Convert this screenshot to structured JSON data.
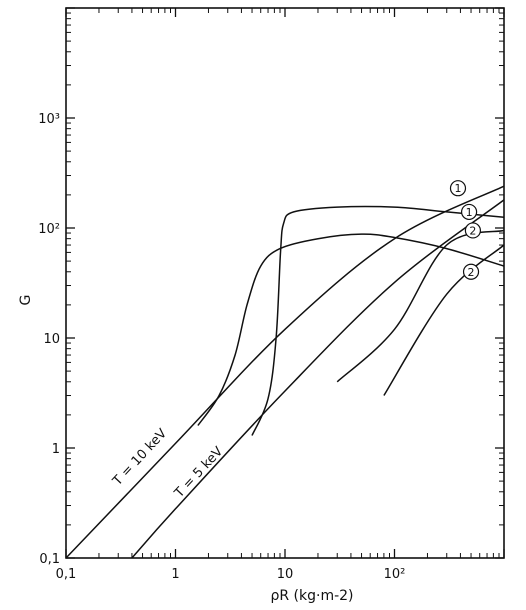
{
  "chart_data": {
    "type": "line",
    "title": "",
    "xlabel": "ρR (kg·m-2)",
    "ylabel": "G",
    "xscale": "log",
    "yscale": "log",
    "xlim": [
      0.1,
      1000
    ],
    "ylim": [
      0.1,
      10000
    ],
    "grid": false,
    "x_ticks": [
      {
        "value": 0.1,
        "label": "0,1"
      },
      {
        "value": 1,
        "label": "1"
      },
      {
        "value": 10,
        "label": "10"
      },
      {
        "value": 100,
        "label": "10²"
      }
    ],
    "y_ticks": [
      {
        "value": 0.1,
        "label": "0,1"
      },
      {
        "value": 1,
        "label": "1"
      },
      {
        "value": 10,
        "label": "10"
      },
      {
        "value": 100,
        "label": "10²"
      },
      {
        "value": 1000,
        "label": "10³"
      }
    ],
    "series": [
      {
        "name": "T = 10 keV",
        "points": [
          [
            0.1,
            0.1
          ],
          [
            1,
            1.1
          ],
          [
            10,
            12
          ],
          [
            100,
            80
          ],
          [
            1000,
            240
          ]
        ]
      },
      {
        "name": "T = 5 keV",
        "points": [
          [
            0.4,
            0.1
          ],
          [
            1,
            0.28
          ],
          [
            10,
            3.3
          ],
          [
            100,
            32
          ],
          [
            1000,
            180
          ]
        ]
      },
      {
        "name": "1",
        "points": [
          [
            1.6,
            1.6
          ],
          [
            2.5,
            3
          ],
          [
            3.5,
            7
          ],
          [
            4.5,
            20
          ],
          [
            6,
            45
          ],
          [
            9,
            65
          ],
          [
            20,
            80
          ],
          [
            50,
            88
          ],
          [
            100,
            82
          ],
          [
            300,
            65
          ],
          [
            1000,
            45
          ]
        ]
      },
      {
        "name": "1",
        "points": [
          [
            5,
            1.3
          ],
          [
            7,
            2.8
          ],
          [
            8.3,
            10
          ],
          [
            9.1,
            60
          ],
          [
            9.7,
            110
          ],
          [
            12,
            140
          ],
          [
            30,
            155
          ],
          [
            100,
            155
          ],
          [
            300,
            140
          ],
          [
            1000,
            125
          ]
        ]
      },
      {
        "name": "2",
        "points": [
          [
            30,
            4
          ],
          [
            100,
            12
          ],
          [
            300,
            70
          ],
          [
            1000,
            95
          ]
        ]
      },
      {
        "name": "2",
        "points": [
          [
            80,
            3
          ],
          [
            300,
            25
          ],
          [
            1000,
            70
          ]
        ]
      }
    ],
    "annotations": [
      {
        "text": "T = 10 keV",
        "x": 0.3,
        "y": 0.45
      },
      {
        "text": "T = 5 keV",
        "x": 1.1,
        "y": 0.35
      },
      {
        "text": "1",
        "x": 380,
        "y": 230
      },
      {
        "text": "1",
        "x": 480,
        "y": 140
      },
      {
        "text": "2",
        "x": 520,
        "y": 95
      },
      {
        "text": "2",
        "x": 500,
        "y": 40
      }
    ]
  }
}
